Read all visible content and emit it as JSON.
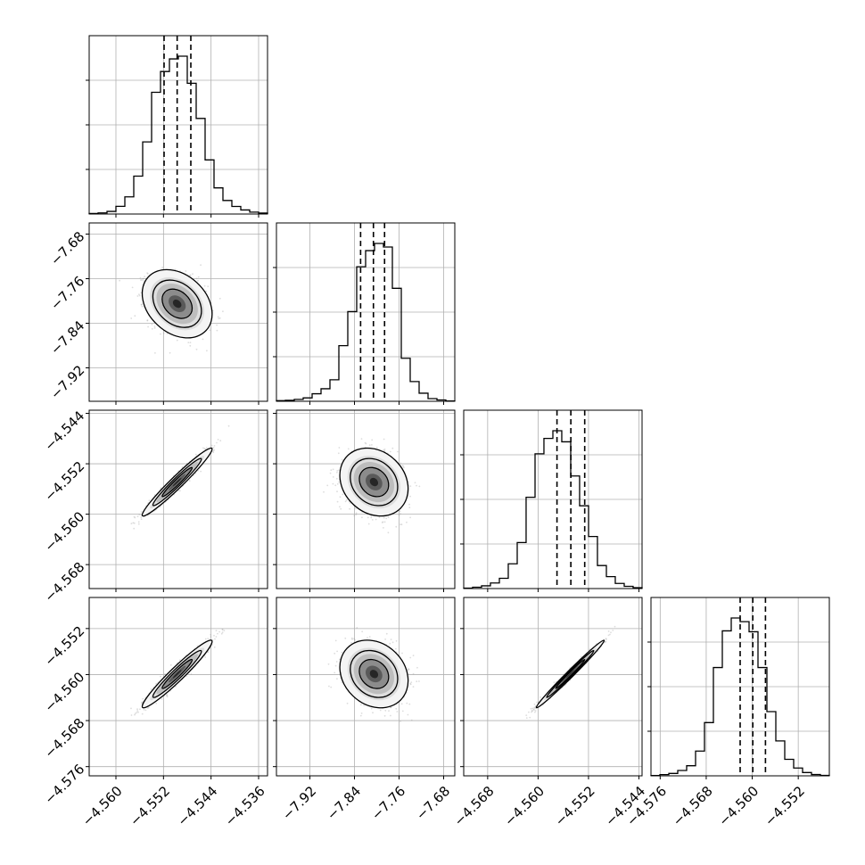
{
  "chart_data": {
    "type": "corner",
    "title": "",
    "parameters": [
      {
        "index": 0,
        "label": "",
        "range": [
          -4.5645,
          -4.5345
        ],
        "ticks": [
          -4.56,
          -4.552,
          -4.544,
          -4.536
        ],
        "tick_labels": [
          "−4.560",
          "−4.552",
          "−4.544",
          "−4.536"
        ],
        "mean": -4.5497,
        "sd": 0.0024,
        "quantiles": [
          -4.5519,
          -4.5497,
          -4.5474
        ],
        "hist_bin_edges": [
          -4.5645,
          -4.563,
          -4.5615,
          -4.56,
          -4.5585,
          -4.557,
          -4.5555,
          -4.554,
          -4.5525,
          -4.551,
          -4.5495,
          -4.548,
          -4.5465,
          -4.545,
          -4.5435,
          -4.542,
          -4.5405,
          -4.539,
          -4.5375,
          -4.536,
          -4.5345
        ],
        "hist_counts": [
          0.6,
          1.2,
          2.9,
          8.5,
          19,
          42,
          80,
          135,
          158,
          172,
          175,
          145,
          106,
          60,
          29,
          15,
          8.4,
          4.5,
          2.1,
          1.1
        ]
      },
      {
        "index": 1,
        "label": "",
        "range": [
          -7.98,
          -7.66
        ],
        "ticks": [
          -7.92,
          -7.84,
          -7.76,
          -7.68
        ],
        "tick_labels": [
          "−7.92",
          "−7.84",
          "−7.76",
          "−7.68"
        ],
        "mean": -7.805,
        "sd": 0.025,
        "quantiles": [
          -7.829,
          -7.806,
          -7.786
        ],
        "hist_bin_edges": [
          -7.98,
          -7.964,
          -7.948,
          -7.932,
          -7.916,
          -7.9,
          -7.884,
          -7.868,
          -7.852,
          -7.836,
          -7.82,
          -7.804,
          -7.788,
          -7.772,
          -7.756,
          -7.74,
          -7.724,
          -7.708,
          -7.692,
          -7.676,
          -7.66
        ],
        "hist_counts": [
          0.7,
          1.1,
          2.1,
          3.8,
          8.4,
          14,
          24,
          62,
          100,
          150,
          168,
          176,
          172,
          126,
          48,
          22,
          9,
          3,
          1.5,
          0.4
        ]
      },
      {
        "index": 2,
        "label": "",
        "range": [
          -4.5718,
          -4.5435
        ],
        "ticks": [
          -4.568,
          -4.56,
          -4.552,
          -4.544
        ],
        "tick_labels": [
          "−4.568",
          "−4.560",
          "−4.552",
          "−4.544"
        ],
        "mean": -4.5549,
        "sd": 0.0022,
        "quantiles": [
          -4.557,
          -4.5548,
          -4.5526
        ],
        "hist_bin_edges": [
          -4.5718,
          -4.57039,
          -4.56897,
          -4.56756,
          -4.56614,
          -4.56473,
          -4.56331,
          -4.5619,
          -4.56048,
          -4.55907,
          -4.55765,
          -4.55624,
          -4.55482,
          -4.55341,
          -4.55199,
          -4.55058,
          -4.54916,
          -4.54775,
          -4.54633,
          -4.54492,
          -4.5435
        ],
        "hist_counts": [
          0.5,
          1.6,
          3.2,
          6.5,
          12,
          29,
          54,
          107,
          158,
          176,
          185,
          172,
          132,
          97,
          61,
          27,
          14,
          6,
          2.6,
          1
        ]
      },
      {
        "index": 3,
        "label": "",
        "range": [
          -4.5776,
          -4.5466
        ],
        "ticks": [
          -4.576,
          -4.568,
          -4.56,
          -4.552
        ],
        "tick_labels": [
          "−4.576",
          "−4.568",
          "−4.560",
          "−4.552"
        ],
        "mean": -4.5599,
        "sd": 0.0024,
        "quantiles": [
          -4.5621,
          -4.5599,
          -4.5577
        ],
        "hist_bin_edges": [
          -4.5776,
          -4.57605,
          -4.5745,
          -4.57295,
          -4.5714,
          -4.56985,
          -4.5683,
          -4.56675,
          -4.5652,
          -4.56365,
          -4.5621,
          -4.56055,
          -4.559,
          -4.55745,
          -4.5559,
          -4.55435,
          -4.5528,
          -4.55125,
          -4.5497,
          -4.54815,
          -4.5466
        ],
        "hist_counts": [
          0.4,
          1.3,
          2.6,
          5.8,
          11,
          27,
          58,
          118,
          158,
          172,
          168,
          157,
          118,
          70,
          38,
          18,
          8.5,
          3.6,
          1.4,
          0.5
        ]
      }
    ],
    "correlations": [
      [
        1,
        -0.3,
        0.97,
        0.96
      ],
      [
        -0.3,
        1,
        -0.2,
        -0.2
      ],
      [
        0.97,
        -0.2,
        1,
        0.99
      ],
      [
        0.96,
        -0.2,
        0.99,
        1
      ]
    ],
    "quantile_levels": [
      0.16,
      0.5,
      0.84
    ],
    "contour_style": "filled density with 1, 2, 3 sigma contours",
    "grid": true,
    "colors": {
      "hist_line": "#000000",
      "quantile_line": "#000000",
      "points": "#9e9e9e",
      "grid": "#b0b0b0"
    }
  }
}
